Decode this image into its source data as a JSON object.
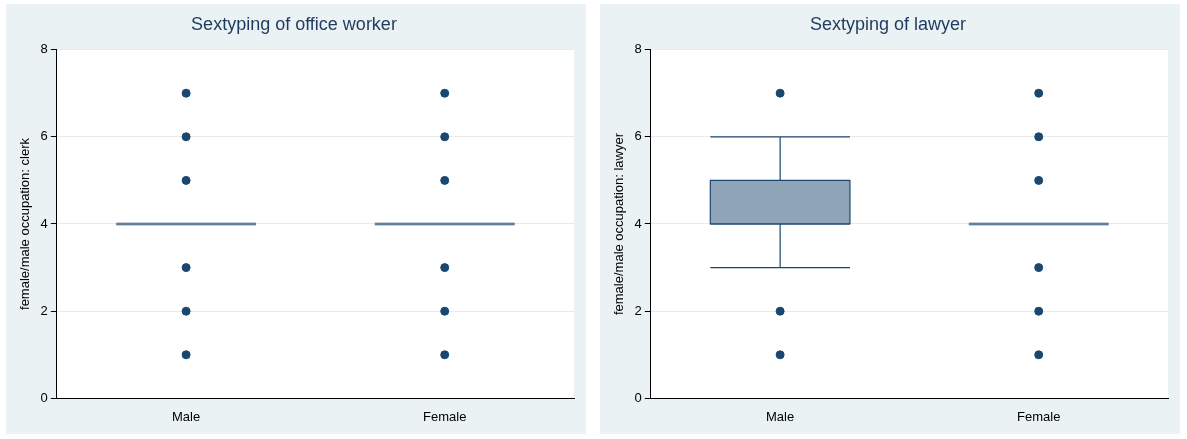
{
  "chart_data": [
    {
      "type": "box",
      "title": "Sextyping of office worker",
      "ylabel": "female/male occupation: clerk",
      "categories": [
        "Male",
        "Female"
      ],
      "ylim": [
        0,
        8
      ],
      "yticks": [
        0,
        2,
        4,
        6,
        8
      ],
      "grid": "y",
      "marker": "circle",
      "series": [
        {
          "color": "#90a4b8",
          "boxes": [
            {
              "low": 4,
              "q1": 4,
              "median": 4,
              "q3": 4,
              "high": 4,
              "outliers": [
                1,
                2,
                3,
                5,
                6,
                7
              ]
            },
            {
              "low": 4,
              "q1": 4,
              "median": 4,
              "q3": 4,
              "high": 4,
              "outliers": [
                1,
                2,
                3,
                5,
                6,
                7
              ]
            }
          ]
        }
      ]
    },
    {
      "type": "box",
      "title": "Sextyping of lawyer",
      "ylabel": "female/male occupation: lawyer",
      "categories": [
        "Male",
        "Female"
      ],
      "ylim": [
        0,
        8
      ],
      "yticks": [
        0,
        2,
        4,
        6,
        8
      ],
      "grid": "y",
      "marker": "circle",
      "series": [
        {
          "color": "#90a4b8",
          "boxes": [
            {
              "low": 3,
              "q1": 4,
              "median": 4,
              "q3": 5,
              "high": 6,
              "outliers": [
                1,
                2,
                7
              ]
            },
            {
              "low": 4,
              "q1": 4,
              "median": 4,
              "q3": 4,
              "high": 4,
              "outliers": [
                1,
                2,
                3,
                5,
                6,
                7
              ]
            }
          ]
        }
      ]
    }
  ]
}
